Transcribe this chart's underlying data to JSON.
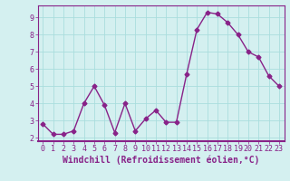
{
  "x": [
    0,
    1,
    2,
    3,
    4,
    5,
    6,
    7,
    8,
    9,
    10,
    11,
    12,
    13,
    14,
    15,
    16,
    17,
    18,
    19,
    20,
    21,
    22,
    23
  ],
  "y": [
    2.8,
    2.2,
    2.2,
    2.4,
    4.0,
    5.0,
    3.9,
    2.3,
    4.0,
    2.4,
    3.1,
    3.6,
    2.9,
    2.9,
    5.7,
    8.3,
    9.3,
    9.2,
    8.7,
    8.0,
    7.0,
    6.7,
    5.6,
    5.0
  ],
  "line_color": "#882288",
  "marker": "D",
  "markersize": 2.5,
  "linewidth": 1.0,
  "xlabel": "Windchill (Refroidissement éolien,°C)",
  "ylim": [
    1.8,
    9.7
  ],
  "xlim": [
    -0.5,
    23.5
  ],
  "yticks": [
    2,
    3,
    4,
    5,
    6,
    7,
    8,
    9
  ],
  "xticks": [
    0,
    1,
    2,
    3,
    4,
    5,
    6,
    7,
    8,
    9,
    10,
    11,
    12,
    13,
    14,
    15,
    16,
    17,
    18,
    19,
    20,
    21,
    22,
    23
  ],
  "background_color": "#d4f0f0",
  "grid_color": "#aadddd",
  "tick_color": "#882288",
  "tick_fontsize": 6.0,
  "xlabel_fontsize": 7.0,
  "spine_color": "#882288"
}
